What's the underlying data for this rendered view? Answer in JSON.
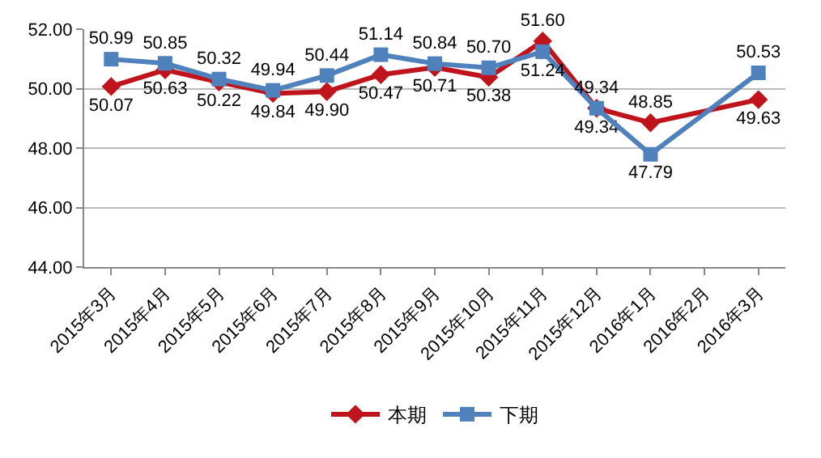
{
  "chart_data": {
    "type": "line",
    "categories": [
      "2015年3月",
      "2015年4月",
      "2015年5月",
      "2015年6月",
      "2015年7月",
      "2015年8月",
      "2015年9月",
      "2015年10月",
      "2015年11月",
      "2015年12月",
      "2016年1月",
      "2016年2月",
      "2016年3月"
    ],
    "series": [
      {
        "name": "本期",
        "color": "#c0141c",
        "marker": "diamond",
        "values": [
          50.07,
          50.63,
          50.22,
          49.84,
          49.9,
          50.47,
          50.71,
          50.38,
          51.6,
          49.34,
          48.85,
          null,
          49.63
        ],
        "value_labels": [
          "50.07",
          "50.63",
          "50.22",
          "49.84",
          "49.90",
          "50.47",
          "50.71",
          "50.38",
          "51.60",
          "49.34",
          "48.85",
          null,
          "49.63"
        ]
      },
      {
        "name": "下期",
        "color": "#4f81bd",
        "marker": "square",
        "values": [
          50.99,
          50.85,
          50.32,
          49.94,
          50.44,
          51.14,
          50.84,
          50.7,
          51.24,
          49.34,
          47.79,
          null,
          50.53
        ],
        "value_labels": [
          "50.99",
          "50.85",
          "50.32",
          "49.94",
          "50.44",
          "51.14",
          "50.84",
          "50.70",
          "51.24",
          "49.34",
          "47.79",
          null,
          "50.53"
        ]
      }
    ],
    "ylim": [
      44,
      52
    ],
    "yticks": [
      {
        "value": 44,
        "label": "44.00"
      },
      {
        "value": 46,
        "label": "46.00"
      },
      {
        "value": 48,
        "label": "48.00"
      },
      {
        "value": 50,
        "label": "50.00"
      },
      {
        "value": 52,
        "label": "52.00"
      }
    ],
    "grid": "y",
    "legend": "bottom",
    "line_style": "solid"
  }
}
